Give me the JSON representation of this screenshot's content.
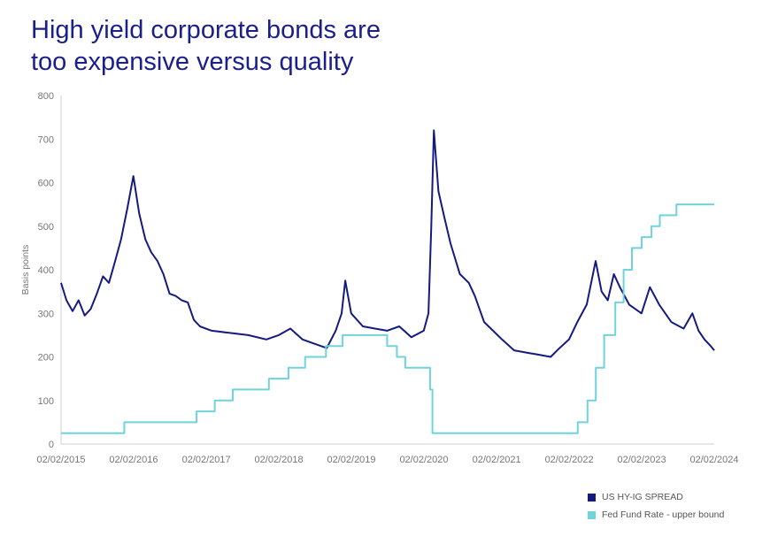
{
  "title_lines": [
    "High yield corporate bonds are",
    "too expensive versus quality"
  ],
  "colors": {
    "title": "#1a1f8c",
    "spread": "#141a80",
    "fed": "#6fd3dc",
    "axis_text": "#777777"
  },
  "chart_data": {
    "type": "line",
    "title": "High yield corporate bonds are too expensive versus quality",
    "ylabel": "Basis points",
    "xlabel": "",
    "ylim": [
      0,
      800
    ],
    "yticks": [
      0,
      100,
      200,
      300,
      400,
      500,
      600,
      700,
      800
    ],
    "xticks": [
      "02/02/2015",
      "02/02/2016",
      "02/02/2017",
      "02/02/2018",
      "02/02/2019",
      "02/02/2020",
      "02/02/2021",
      "02/02/2022",
      "02/02/2023",
      "02/02/2024"
    ],
    "xlim": [
      "2015-02-02",
      "2024-02-02"
    ],
    "grid": false,
    "legend_position": "bottom-right",
    "series": [
      {
        "name": "US HY-IG SPREAD",
        "color": "#141a80",
        "points": [
          [
            "2015-02-02",
            370
          ],
          [
            "2015-03-01",
            330
          ],
          [
            "2015-04-01",
            305
          ],
          [
            "2015-05-01",
            330
          ],
          [
            "2015-06-01",
            295
          ],
          [
            "2015-07-01",
            310
          ],
          [
            "2015-08-01",
            345
          ],
          [
            "2015-09-01",
            385
          ],
          [
            "2015-10-01",
            370
          ],
          [
            "2015-11-01",
            420
          ],
          [
            "2015-12-01",
            470
          ],
          [
            "2016-01-01",
            540
          ],
          [
            "2016-02-01",
            615
          ],
          [
            "2016-03-01",
            530
          ],
          [
            "2016-04-01",
            470
          ],
          [
            "2016-05-01",
            440
          ],
          [
            "2016-06-01",
            420
          ],
          [
            "2016-07-01",
            390
          ],
          [
            "2016-08-01",
            345
          ],
          [
            "2016-09-01",
            340
          ],
          [
            "2016-10-01",
            330
          ],
          [
            "2016-11-01",
            325
          ],
          [
            "2016-12-01",
            285
          ],
          [
            "2017-01-01",
            270
          ],
          [
            "2017-03-01",
            260
          ],
          [
            "2017-06-01",
            255
          ],
          [
            "2017-09-01",
            250
          ],
          [
            "2017-12-01",
            240
          ],
          [
            "2018-02-01",
            250
          ],
          [
            "2018-04-01",
            265
          ],
          [
            "2018-06-01",
            240
          ],
          [
            "2018-08-01",
            230
          ],
          [
            "2018-10-01",
            220
          ],
          [
            "2018-11-15",
            260
          ],
          [
            "2018-12-15",
            300
          ],
          [
            "2019-01-02",
            375
          ],
          [
            "2019-02-01",
            300
          ],
          [
            "2019-04-01",
            270
          ],
          [
            "2019-06-01",
            265
          ],
          [
            "2019-08-01",
            260
          ],
          [
            "2019-10-01",
            270
          ],
          [
            "2019-12-01",
            245
          ],
          [
            "2020-02-01",
            260
          ],
          [
            "2020-02-25",
            300
          ],
          [
            "2020-03-10",
            500
          ],
          [
            "2020-03-23",
            720
          ],
          [
            "2020-04-15",
            580
          ],
          [
            "2020-05-15",
            520
          ],
          [
            "2020-06-15",
            460
          ],
          [
            "2020-08-01",
            390
          ],
          [
            "2020-09-15",
            370
          ],
          [
            "2020-10-15",
            340
          ],
          [
            "2020-12-01",
            280
          ],
          [
            "2021-01-15",
            260
          ],
          [
            "2021-03-01",
            240
          ],
          [
            "2021-05-01",
            215
          ],
          [
            "2021-07-01",
            210
          ],
          [
            "2021-09-01",
            205
          ],
          [
            "2021-11-01",
            200
          ],
          [
            "2021-12-15",
            220
          ],
          [
            "2022-02-01",
            240
          ],
          [
            "2022-03-15",
            280
          ],
          [
            "2022-05-01",
            320
          ],
          [
            "2022-06-15",
            420
          ],
          [
            "2022-07-15",
            350
          ],
          [
            "2022-08-15",
            330
          ],
          [
            "2022-09-15",
            390
          ],
          [
            "2022-10-15",
            360
          ],
          [
            "2022-12-01",
            320
          ],
          [
            "2023-02-01",
            300
          ],
          [
            "2023-03-15",
            360
          ],
          [
            "2023-05-01",
            320
          ],
          [
            "2023-07-01",
            280
          ],
          [
            "2023-09-01",
            265
          ],
          [
            "2023-10-15",
            300
          ],
          [
            "2023-11-15",
            260
          ],
          [
            "2023-12-15",
            240
          ],
          [
            "2024-01-15",
            225
          ],
          [
            "2024-02-02",
            215
          ]
        ]
      },
      {
        "name": "Fed Fund Rate - upper bound",
        "color": "#6fd3dc",
        "step": true,
        "points": [
          [
            "2015-02-02",
            25
          ],
          [
            "2015-12-17",
            50
          ],
          [
            "2016-12-15",
            75
          ],
          [
            "2017-03-16",
            100
          ],
          [
            "2017-06-15",
            125
          ],
          [
            "2017-12-14",
            150
          ],
          [
            "2018-03-22",
            175
          ],
          [
            "2018-06-14",
            200
          ],
          [
            "2018-09-27",
            225
          ],
          [
            "2018-12-20",
            250
          ],
          [
            "2019-08-01",
            225
          ],
          [
            "2019-09-19",
            200
          ],
          [
            "2019-10-31",
            175
          ],
          [
            "2020-03-04",
            125
          ],
          [
            "2020-03-16",
            25
          ],
          [
            "2022-03-17",
            50
          ],
          [
            "2022-05-05",
            100
          ],
          [
            "2022-06-16",
            175
          ],
          [
            "2022-07-28",
            250
          ],
          [
            "2022-09-22",
            325
          ],
          [
            "2022-11-03",
            400
          ],
          [
            "2022-12-15",
            450
          ],
          [
            "2023-02-02",
            475
          ],
          [
            "2023-03-23",
            500
          ],
          [
            "2023-05-04",
            525
          ],
          [
            "2023-07-27",
            550
          ],
          [
            "2024-02-02",
            550
          ]
        ]
      }
    ]
  }
}
